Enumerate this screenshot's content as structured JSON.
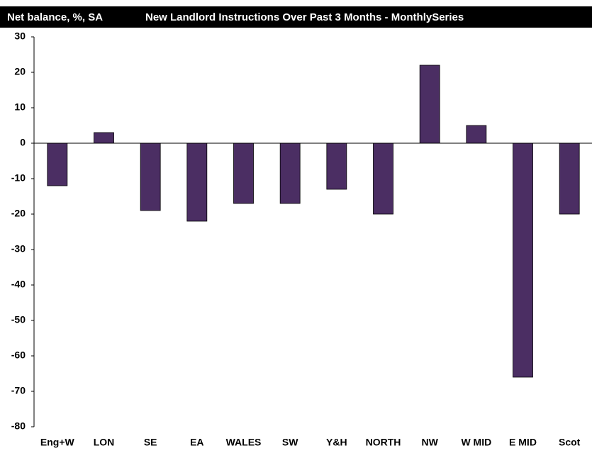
{
  "chart_data": {
    "type": "bar",
    "title": "New Landlord Instructions Over Past 3 Months - MonthlySeries",
    "y_label": "Net balance, %, SA",
    "categories": [
      "Eng+W",
      "LON",
      "SE",
      "EA",
      "WALES",
      "SW",
      "Y&H",
      "NORTH",
      "NW",
      "W MID",
      "E MID",
      "Scot"
    ],
    "values": [
      -12,
      3,
      -19,
      -22,
      -17,
      -17,
      -13,
      -20,
      22,
      5,
      -66,
      -20
    ],
    "color": "#4b2e63",
    "ylim": [
      -80,
      30
    ],
    "yticks": [
      -80,
      -70,
      -60,
      -50,
      -40,
      -30,
      -20,
      -10,
      0,
      10,
      20,
      30
    ],
    "grid": false
  }
}
